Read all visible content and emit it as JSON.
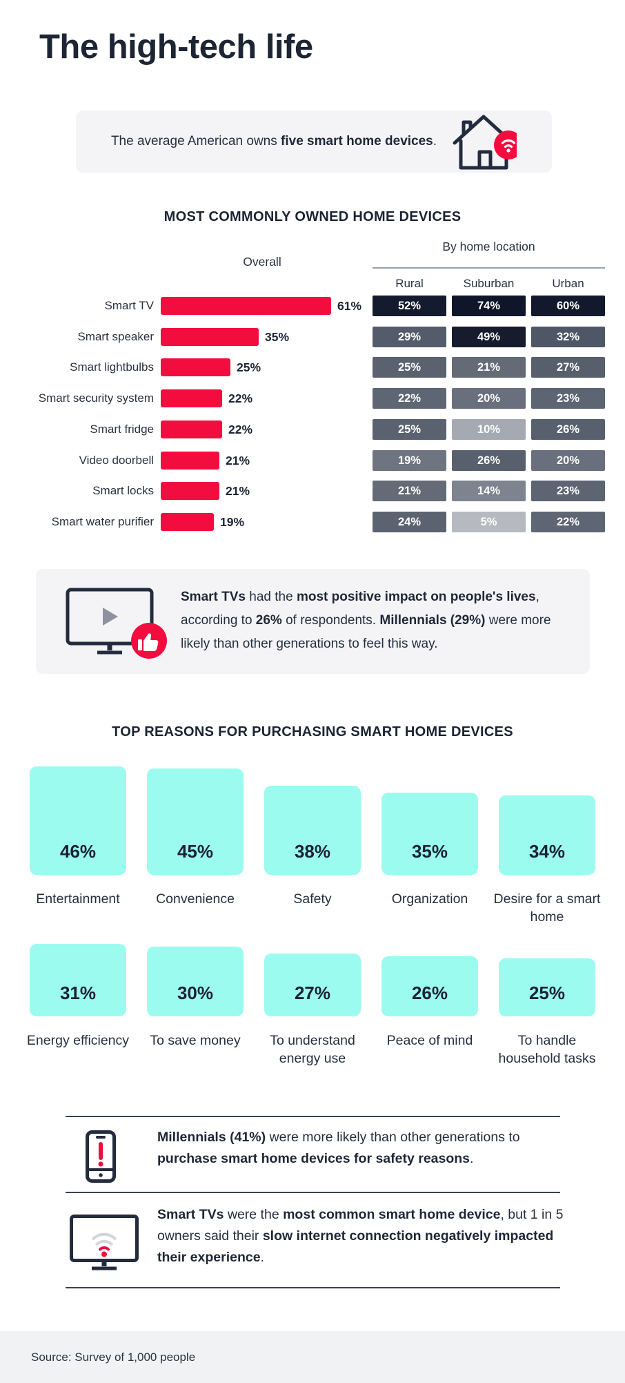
{
  "title": "The high-tech life",
  "colors": {
    "red": "#f20d3e",
    "cyan": "#9bfbee",
    "navy": "#232b3d",
    "heat_dark": "#161c2e",
    "box_gray": "#f4f4f6"
  },
  "intro_callout": {
    "icon": "house-wifi-icon",
    "segments": [
      {
        "t": "The average American owns ",
        "b": false
      },
      {
        "t": "five smart home devices",
        "b": true
      },
      {
        "t": ".",
        "b": false
      }
    ]
  },
  "devices_chart": {
    "heading": "MOST COMMONLY OWNED HOME DEVICES",
    "overall_label": "Overall",
    "by_location_label": "By home location",
    "location_columns": [
      "Rural",
      "Suburban",
      "Urban"
    ],
    "rows": [
      {
        "label": "Smart TV",
        "overall": 61,
        "rural": 52,
        "suburban": 74,
        "urban": 60
      },
      {
        "label": "Smart speaker",
        "overall": 35,
        "rural": 29,
        "suburban": 49,
        "urban": 32
      },
      {
        "label": "Smart lightbulbs",
        "overall": 25,
        "rural": 25,
        "suburban": 21,
        "urban": 27
      },
      {
        "label": "Smart security system",
        "overall": 22,
        "rural": 22,
        "suburban": 20,
        "urban": 23
      },
      {
        "label": "Smart fridge",
        "overall": 22,
        "rural": 25,
        "suburban": 10,
        "urban": 26
      },
      {
        "label": "Video doorbell",
        "overall": 21,
        "rural": 19,
        "suburban": 26,
        "urban": 20
      },
      {
        "label": "Smart locks",
        "overall": 21,
        "rural": 21,
        "suburban": 14,
        "urban": 23
      },
      {
        "label": "Smart water purifier",
        "overall": 19,
        "rural": 24,
        "suburban": 5,
        "urban": 22
      }
    ]
  },
  "tv_callout": {
    "icon": "tv-thumbs-up-icon",
    "segments": [
      {
        "t": "Smart TVs",
        "b": true
      },
      {
        "t": " had the ",
        "b": false
      },
      {
        "t": "most positive impact on people's lives",
        "b": true
      },
      {
        "t": ", according to ",
        "b": false
      },
      {
        "t": "26%",
        "b": true
      },
      {
        "t": " of respondents. ",
        "b": false
      },
      {
        "t": "Millennials (29%)",
        "b": true
      },
      {
        "t": " were more likely than other generations to feel this way.",
        "b": false
      }
    ]
  },
  "reasons": {
    "heading": "TOP REASONS FOR PURCHASING SMART HOME DEVICES",
    "items": [
      {
        "label": "Entertainment",
        "value": 46
      },
      {
        "label": "Convenience",
        "value": 45
      },
      {
        "label": "Safety",
        "value": 38
      },
      {
        "label": "Organization",
        "value": 35
      },
      {
        "label": "Desire for a smart home",
        "value": 34
      },
      {
        "label": "Energy efficiency",
        "value": 31
      },
      {
        "label": "To save money",
        "value": 30
      },
      {
        "label": "To understand energy use",
        "value": 27
      },
      {
        "label": "Peace of mind",
        "value": 26
      },
      {
        "label": "To handle household tasks",
        "value": 25
      }
    ]
  },
  "bottom_callouts": [
    {
      "icon": "phone-alert-icon",
      "segments": [
        {
          "t": "Millennials (41%)",
          "b": true
        },
        {
          "t": " were more likely than other generations to ",
          "b": false
        },
        {
          "t": "purchase smart home devices for safety reasons",
          "b": true
        },
        {
          "t": ".",
          "b": false
        }
      ]
    },
    {
      "icon": "monitor-wifi-icon",
      "segments": [
        {
          "t": "Smart TVs",
          "b": true
        },
        {
          "t": " were the ",
          "b": false
        },
        {
          "t": "most common smart home device",
          "b": true
        },
        {
          "t": ", but 1 in 5 owners said their ",
          "b": false
        },
        {
          "t": "slow internet connection negatively impacted their experience",
          "b": true
        },
        {
          "t": ".",
          "b": false
        }
      ]
    }
  ],
  "footer": {
    "source": "Source: Survey of 1,000 people"
  },
  "chart_data": [
    {
      "type": "bar",
      "title": "MOST COMMONLY OWNED HOME DEVICES",
      "categories": [
        "Smart TV",
        "Smart speaker",
        "Smart lightbulbs",
        "Smart security system",
        "Smart fridge",
        "Video doorbell",
        "Smart locks",
        "Smart water purifier"
      ],
      "series": [
        {
          "name": "Overall",
          "values": [
            61,
            35,
            25,
            22,
            22,
            21,
            21,
            19
          ]
        },
        {
          "name": "Rural",
          "values": [
            52,
            29,
            25,
            22,
            25,
            19,
            21,
            24
          ]
        },
        {
          "name": "Suburban",
          "values": [
            74,
            49,
            21,
            20,
            10,
            26,
            14,
            5
          ]
        },
        {
          "name": "Urban",
          "values": [
            60,
            32,
            27,
            23,
            26,
            20,
            23,
            22
          ]
        }
      ],
      "unit": "%",
      "notes": "Overall shown as red horizontal bars; Rural/Suburban/Urban shown as heatmap cells shaded darker for higher values"
    },
    {
      "type": "bar",
      "title": "TOP REASONS FOR PURCHASING SMART HOME DEVICES",
      "categories": [
        "Entertainment",
        "Convenience",
        "Safety",
        "Organization",
        "Desire for a smart home",
        "Energy efficiency",
        "To save money",
        "To understand energy use",
        "Peace of mind",
        "To handle household tasks"
      ],
      "values": [
        46,
        45,
        38,
        35,
        34,
        31,
        30,
        27,
        26,
        25
      ],
      "unit": "%",
      "notes": "Rendered as two rows of cyan rounded tiles whose heights scale with value"
    }
  ]
}
